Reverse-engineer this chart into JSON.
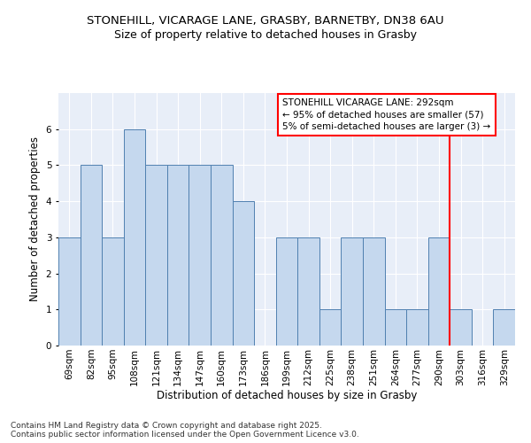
{
  "title1": "STONEHILL, VICARAGE LANE, GRASBY, BARNETBY, DN38 6AU",
  "title2": "Size of property relative to detached houses in Grasby",
  "xlabel": "Distribution of detached houses by size in Grasby",
  "ylabel": "Number of detached properties",
  "categories": [
    "69sqm",
    "82sqm",
    "95sqm",
    "108sqm",
    "121sqm",
    "134sqm",
    "147sqm",
    "160sqm",
    "173sqm",
    "186sqm",
    "199sqm",
    "212sqm",
    "225sqm",
    "238sqm",
    "251sqm",
    "264sqm",
    "277sqm",
    "290sqm",
    "303sqm",
    "316sqm",
    "329sqm"
  ],
  "values": [
    3,
    5,
    3,
    6,
    5,
    5,
    5,
    5,
    4,
    0,
    3,
    3,
    1,
    3,
    3,
    1,
    1,
    3,
    1,
    0,
    1
  ],
  "bar_color": "#c5d8ee",
  "bar_edge_color": "#5080b0",
  "vline_color": "red",
  "vline_index": 17.5,
  "annotation_text": "STONEHILL VICARAGE LANE: 292sqm\n← 95% of detached houses are smaller (57)\n5% of semi-detached houses are larger (3) →",
  "annotation_box_facecolor": "white",
  "annotation_box_edgecolor": "red",
  "ylim": [
    0,
    7
  ],
  "yticks": [
    0,
    1,
    2,
    3,
    4,
    5,
    6
  ],
  "bg_color": "#e8eef8",
  "grid_color": "white",
  "title1_fontsize": 9.5,
  "title2_fontsize": 9,
  "axis_label_fontsize": 8.5,
  "tick_fontsize": 7.5,
  "annotation_fontsize": 7.5,
  "footer_fontsize": 6.5,
  "footer_text": "Contains HM Land Registry data © Crown copyright and database right 2025.\nContains public sector information licensed under the Open Government Licence v3.0."
}
